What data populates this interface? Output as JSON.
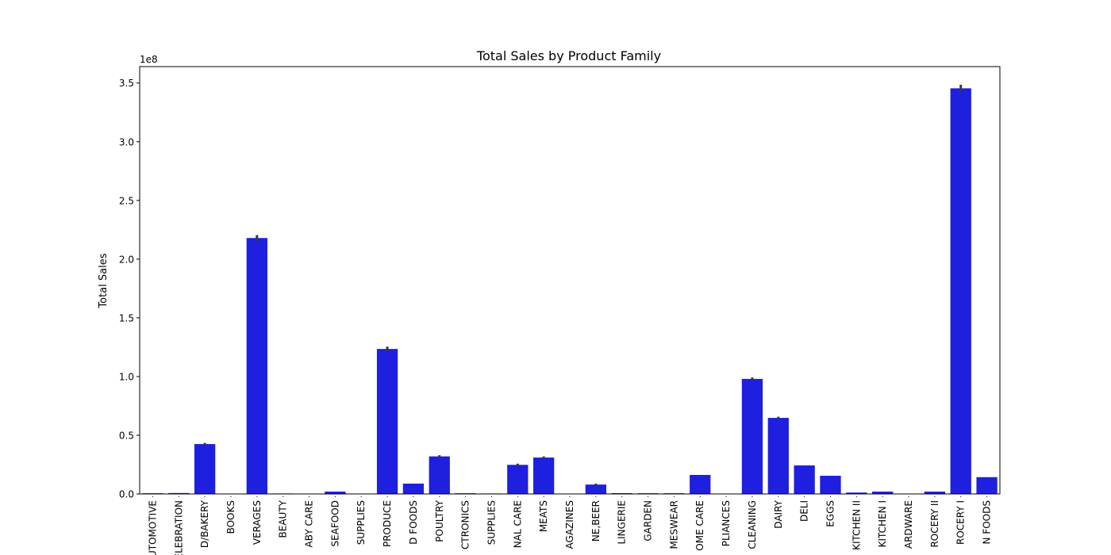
{
  "chart_data": {
    "type": "bar",
    "title": "Total Sales by Product Family",
    "xlabel": "",
    "ylabel": "Total Sales",
    "y_scale_label": "1e8",
    "ylim": [
      0,
      3.64
    ],
    "yticks": [
      0.0,
      0.5,
      1.0,
      1.5,
      2.0,
      2.5,
      3.0,
      3.5
    ],
    "ytick_labels": [
      "0.0",
      "0.5",
      "1.0",
      "1.5",
      "2.0",
      "2.5",
      "3.0",
      "3.5"
    ],
    "categories": [
      "AUTOMOTIVE",
      "CELEBRATION",
      "BREAD/BAKERY",
      "BOOKS",
      "BEVERAGES",
      "BEAUTY",
      "BABY CARE",
      "SEAFOOD",
      "SCHOOL AND OFFICE SUPPLIES",
      "PRODUCE",
      "PREPARED FOODS",
      "POULTRY",
      "PLAYERS AND ELECTRONICS",
      "PET SUPPLIES",
      "PERSONAL CARE",
      "MEATS",
      "MAGAZINES",
      "LIQUOR,WINE,BEER",
      "LINGERIE",
      "LAWN AND GARDEN",
      "HOMEWARE",
      "HOME CARE",
      "HOME APPLIANCES",
      "CLEANING",
      "DAIRY",
      "DELI",
      "EGGS",
      "HOME AND KITCHEN II",
      "HOME AND KITCHEN I",
      "HARDWARE",
      "GROCERY II",
      "GROCERY I",
      "FROZEN FOODS"
    ],
    "tick_labels_shown": [
      "AUTOMOTIVE",
      "CELEBRATION",
      "D/BAKERY",
      "BOOKS",
      "VERAGES",
      "BEAUTY",
      "ABY CARE",
      "SEAFOOD",
      "SUPPLIES",
      "PRODUCE",
      "D FOODS",
      "POULTRY",
      "CTRONICS",
      "SUPPLIES",
      "NAL CARE",
      "MEATS",
      "AGAZINES",
      "NE,BEER",
      "LINGERIE",
      "GARDEN",
      "MESWEAR",
      "OME CARE",
      "PLIANCES",
      "CLEANING",
      "DAIRY",
      "DELI",
      "EGGS",
      "KITCHEN II",
      "KITCHEN I",
      "ARDWARE",
      "ROCERY II",
      "ROCERY I",
      "N FOODS"
    ],
    "values": [
      0.006,
      0.008,
      0.425,
      0.0001,
      2.18,
      0.004,
      0.0001,
      0.02,
      0.001,
      1.235,
      0.088,
      0.32,
      0.006,
      0.004,
      0.248,
      0.31,
      0.001,
      0.08,
      0.007,
      0.006,
      0.006,
      0.162,
      0.0005,
      0.98,
      0.648,
      0.243,
      0.155,
      0.012,
      0.02,
      0.001,
      0.02,
      3.455,
      0.143
    ],
    "errors": [
      0.0,
      0.0,
      0.01,
      0.0,
      0.025,
      0.0,
      0.0,
      0.0,
      0.0,
      0.02,
      0.0,
      0.01,
      0.0,
      0.0,
      0.01,
      0.01,
      0.0,
      0.008,
      0.0,
      0.0,
      0.0,
      0.0,
      0.0,
      0.012,
      0.01,
      0.0,
      0.0,
      0.0,
      0.0,
      0.0,
      0.0,
      0.03,
      0.0
    ],
    "bar_color": "#1f1fe0",
    "error_color": "#3a3a3a",
    "grid": false,
    "legend": "none"
  }
}
